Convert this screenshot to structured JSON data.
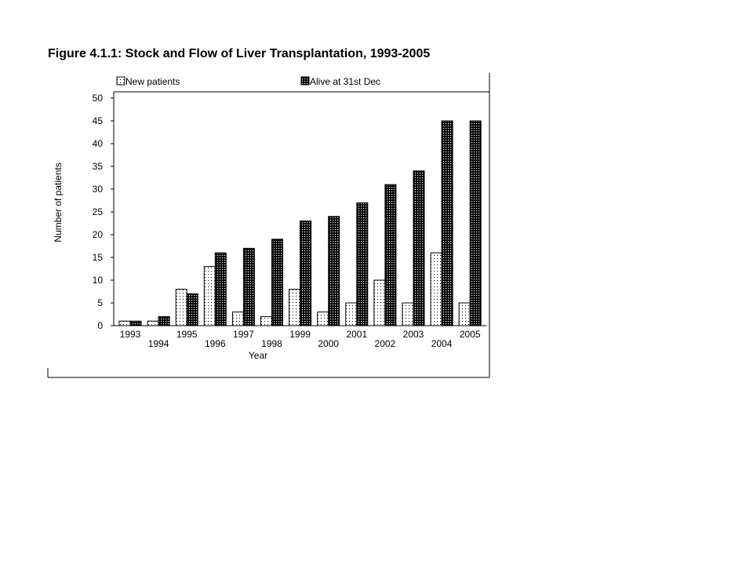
{
  "chart_data": {
    "type": "bar",
    "title": "Figure 4.1.1: Stock and Flow of Liver Transplantation, 1993-2005",
    "xlabel": "Year",
    "ylabel": "Number of patients",
    "ylim": [
      0,
      50
    ],
    "yticks": [
      "0",
      "5",
      "10",
      "15",
      "20",
      "25",
      "30",
      "35",
      "40",
      "45",
      "50"
    ],
    "legend_placement": "top",
    "grid": false,
    "categories": [
      "1993",
      "1994",
      "1995",
      "1996",
      "1997",
      "1998",
      "1999",
      "2000",
      "2001",
      "2002",
      "2003",
      "2004",
      "2005"
    ],
    "series": [
      {
        "name": "New patients",
        "values": [
          1,
          1,
          8,
          13,
          3,
          2,
          8,
          3,
          5,
          10,
          5,
          16,
          5
        ],
        "pattern": "sparse-dots"
      },
      {
        "name": "Alive at 31st Dec",
        "values": [
          1,
          2,
          7,
          16,
          17,
          19,
          23,
          24,
          27,
          31,
          34,
          45,
          45
        ],
        "pattern": "dense-dots"
      }
    ]
  }
}
